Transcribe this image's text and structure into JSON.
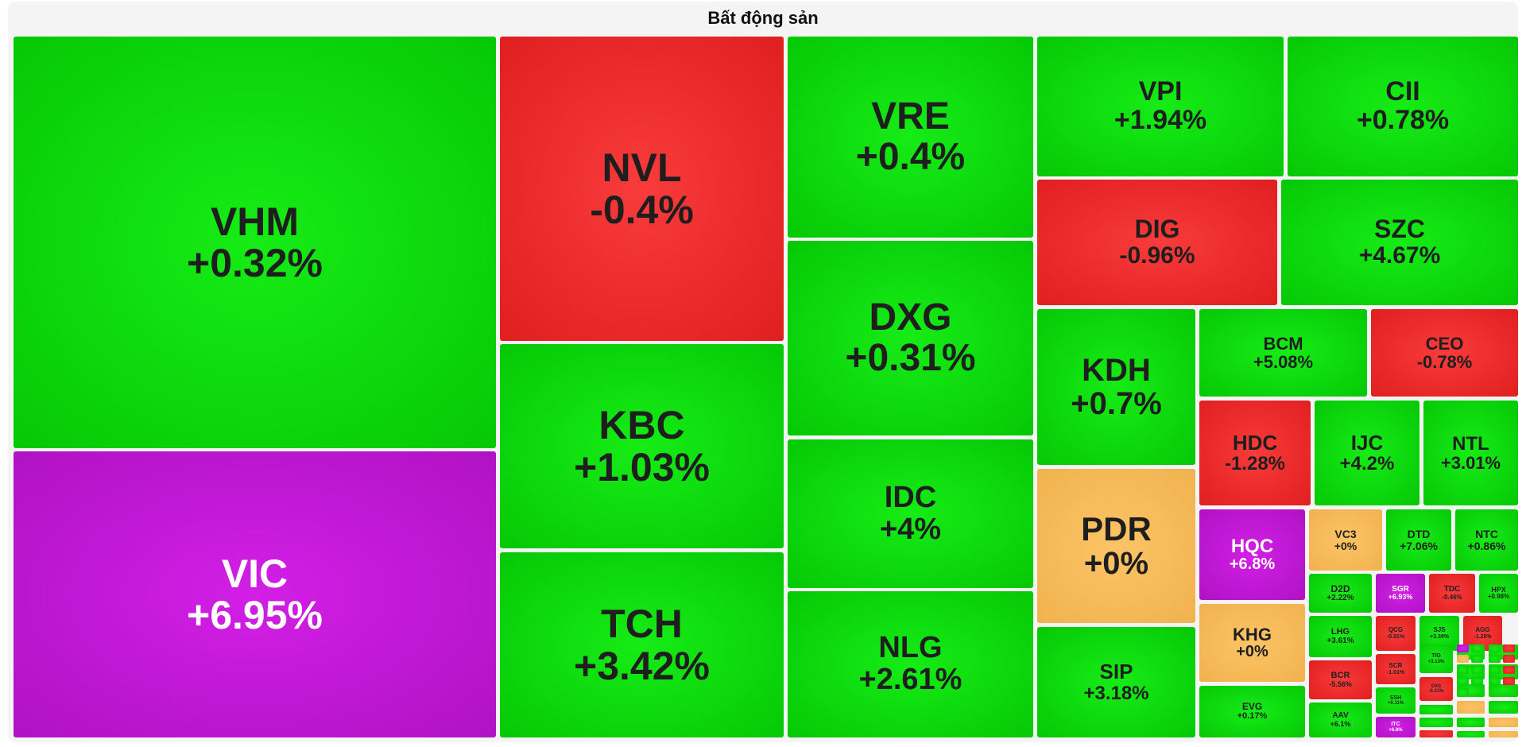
{
  "chart_data": {
    "type": "heatmap",
    "title": "Bất động sản",
    "colors": {
      "up": "#0ad60a",
      "down": "#ee2c2c",
      "reference": "#f6bc58",
      "ceiling": "#c218d6"
    },
    "tiles": [
      {
        "code": "VHM",
        "change": "+0.32%",
        "status": "up"
      },
      {
        "code": "VIC",
        "change": "+6.95%",
        "status": "ceiling"
      },
      {
        "code": "NVL",
        "change": "-0.4%",
        "status": "down"
      },
      {
        "code": "KBC",
        "change": "+1.03%",
        "status": "up"
      },
      {
        "code": "TCH",
        "change": "+3.42%",
        "status": "up"
      },
      {
        "code": "VRE",
        "change": "+0.4%",
        "status": "up"
      },
      {
        "code": "DXG",
        "change": "+0.31%",
        "status": "up"
      },
      {
        "code": "IDC",
        "change": "+4%",
        "status": "up"
      },
      {
        "code": "NLG",
        "change": "+2.61%",
        "status": "up"
      },
      {
        "code": "VPI",
        "change": "+1.94%",
        "status": "up"
      },
      {
        "code": "CII",
        "change": "+0.78%",
        "status": "up"
      },
      {
        "code": "DIG",
        "change": "-0.96%",
        "status": "down"
      },
      {
        "code": "SZC",
        "change": "+4.67%",
        "status": "up"
      },
      {
        "code": "KDH",
        "change": "+0.7%",
        "status": "up"
      },
      {
        "code": "BCM",
        "change": "+5.08%",
        "status": "up"
      },
      {
        "code": "CEO",
        "change": "-0.78%",
        "status": "down"
      },
      {
        "code": "HDC",
        "change": "-1.28%",
        "status": "down"
      },
      {
        "code": "IJC",
        "change": "+4.2%",
        "status": "up"
      },
      {
        "code": "NTL",
        "change": "+3.01%",
        "status": "up"
      },
      {
        "code": "PDR",
        "change": "+0%",
        "status": "reference"
      },
      {
        "code": "HQC",
        "change": "+6.8%",
        "status": "ceiling"
      },
      {
        "code": "VC3",
        "change": "+0%",
        "status": "reference"
      },
      {
        "code": "DTD",
        "change": "+7.06%",
        "status": "up"
      },
      {
        "code": "NTC",
        "change": "+0.86%",
        "status": "up"
      },
      {
        "code": "KHG",
        "change": "+0%",
        "status": "reference"
      },
      {
        "code": "D2D",
        "change": "+2.22%",
        "status": "up"
      },
      {
        "code": "SGR",
        "change": "+6.93%",
        "status": "ceiling"
      },
      {
        "code": "TDC",
        "change": "-0.46%",
        "status": "down"
      },
      {
        "code": "HPX",
        "change": "+0.98%",
        "status": "up"
      },
      {
        "code": "SIP",
        "change": "+3.18%",
        "status": "up"
      },
      {
        "code": "LHG",
        "change": "+3.61%",
        "status": "up"
      },
      {
        "code": "QCG",
        "change": "-0.91%",
        "status": "down"
      },
      {
        "code": "SJS",
        "change": "+3.39%",
        "status": "up"
      },
      {
        "code": "AGG",
        "change": "-1.25%",
        "status": "down"
      },
      {
        "code": "BCR",
        "change": "-5.56%",
        "status": "down"
      },
      {
        "code": "SCR",
        "change": "-1.01%",
        "status": "down"
      },
      {
        "code": "TIG",
        "change": "+3.13%",
        "status": "up"
      },
      {
        "code": "SSH",
        "change": "+0.11%",
        "status": "up"
      },
      {
        "code": "DXS",
        "change": "-0.31%",
        "status": "down"
      },
      {
        "code": "EVG",
        "change": "+0.17%",
        "status": "up"
      },
      {
        "code": "AAV",
        "change": "+6.1%",
        "status": "up"
      },
      {
        "code": "ITC",
        "change": "+6.8%",
        "status": "ceiling"
      },
      {
        "code": "LDG",
        "change": "+2.45%",
        "status": "up"
      },
      {
        "code": "",
        "change": "",
        "status": "up"
      },
      {
        "code": "",
        "change": "",
        "status": "up"
      },
      {
        "code": "",
        "change": "",
        "status": "up"
      },
      {
        "code": "",
        "change": "",
        "status": "up"
      },
      {
        "code": "",
        "change": "",
        "status": "up"
      },
      {
        "code": "",
        "change": "",
        "status": "reference"
      },
      {
        "code": "",
        "change": "",
        "status": "up"
      },
      {
        "code": "",
        "change": "",
        "status": "up"
      },
      {
        "code": "",
        "change": "",
        "status": "reference"
      },
      {
        "code": "",
        "change": "",
        "status": "up"
      },
      {
        "code": "",
        "change": "",
        "status": "reference"
      },
      {
        "code": "",
        "change": "",
        "status": "up"
      },
      {
        "code": "",
        "change": "",
        "status": "up"
      },
      {
        "code": "",
        "change": "",
        "status": "down"
      },
      {
        "code": "",
        "change": "",
        "status": "ceiling"
      },
      {
        "code": "",
        "change": "",
        "status": "up"
      },
      {
        "code": "",
        "change": "",
        "status": "up"
      },
      {
        "code": "",
        "change": "",
        "status": "down"
      },
      {
        "code": "",
        "change": "",
        "status": "reference"
      },
      {
        "code": "",
        "change": "",
        "status": "up"
      },
      {
        "code": "",
        "change": "",
        "status": "up"
      },
      {
        "code": "",
        "change": "",
        "status": "down"
      },
      {
        "code": "",
        "change": "",
        "status": "up"
      },
      {
        "code": "",
        "change": "",
        "status": "up"
      },
      {
        "code": "",
        "change": "",
        "status": "up"
      },
      {
        "code": "",
        "change": "",
        "status": "down"
      },
      {
        "code": "",
        "change": "",
        "status": "up"
      },
      {
        "code": "",
        "change": "",
        "status": "up"
      },
      {
        "code": "",
        "change": "",
        "status": "up"
      },
      {
        "code": "",
        "change": "",
        "status": "down"
      },
      {
        "code": "",
        "change": "",
        "status": "up"
      }
    ]
  }
}
